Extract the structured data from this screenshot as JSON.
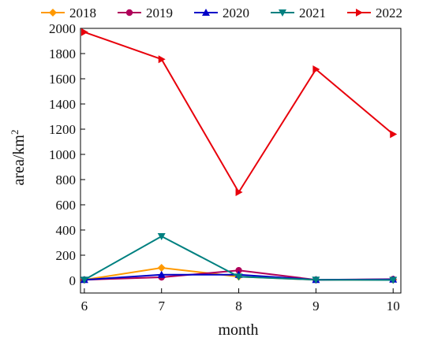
{
  "chart_data": {
    "type": "line",
    "title": "",
    "xlabel": "month",
    "ylabel_main": "area/km",
    "ylabel_sup": "2",
    "x": [
      6,
      7,
      8,
      9,
      10
    ],
    "x_ticks": [
      6,
      7,
      8,
      9,
      10
    ],
    "y_ticks": [
      0,
      200,
      400,
      600,
      800,
      1000,
      1200,
      1400,
      1600,
      1800,
      2000
    ],
    "xlim": [
      5.95,
      10.1
    ],
    "ylim": [
      -100,
      2000
    ],
    "grid": false,
    "legend_position": "top",
    "series": [
      {
        "name": "2018",
        "values": [
          5,
          100,
          30,
          5,
          5
        ],
        "color": "#FF9900",
        "marker": "diamond"
      },
      {
        "name": "2019",
        "values": [
          5,
          25,
          80,
          5,
          10
        ],
        "color": "#B0005A",
        "marker": "circle"
      },
      {
        "name": "2020",
        "values": [
          5,
          45,
          45,
          5,
          8
        ],
        "color": "#0000C8",
        "marker": "triangle-up"
      },
      {
        "name": "2021",
        "values": [
          5,
          350,
          30,
          5,
          3
        ],
        "color": "#008080",
        "marker": "triangle-down"
      },
      {
        "name": "2022",
        "values": [
          1970,
          1755,
          700,
          1675,
          1160
        ],
        "color": "#E8000B",
        "marker": "triangle-right"
      }
    ]
  }
}
